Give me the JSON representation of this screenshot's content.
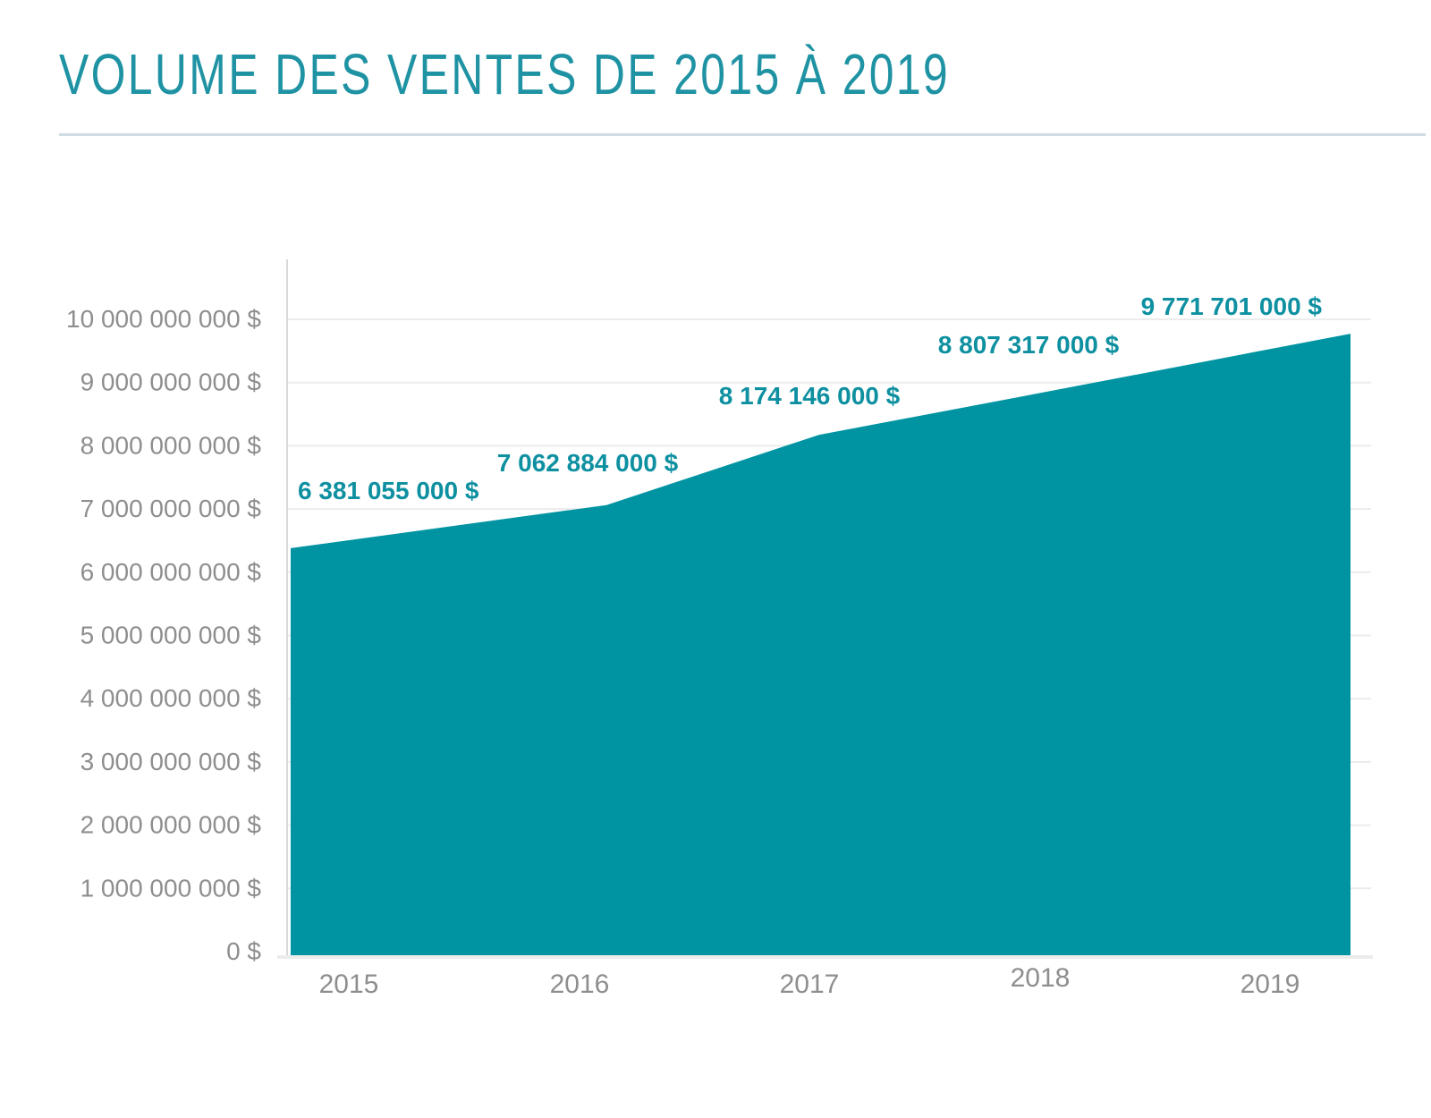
{
  "page": {
    "background": "#ffffff"
  },
  "chart_data": {
    "type": "area",
    "title": "VOLUME DES VENTES DE 2015 À 2019",
    "categories": [
      "2015",
      "2016",
      "2017",
      "2018",
      "2019"
    ],
    "values": [
      6381055000,
      7062884000,
      8174146000,
      8807317000,
      9771701000
    ],
    "value_labels": [
      "6 381 055 000 $",
      "7 062 884 000 $",
      "8 174 146 000 $",
      "8 807 317 000 $",
      "9 771 701 000 $"
    ],
    "xlabel": "",
    "ylabel": "",
    "ylim": [
      0,
      10000000000
    ],
    "y_tick_values": [
      0,
      1000000000,
      2000000000,
      3000000000,
      4000000000,
      5000000000,
      6000000000,
      7000000000,
      8000000000,
      9000000000,
      10000000000
    ],
    "y_tick_labels": [
      "0 $",
      "1 000 000 000 $",
      "2 000 000 000 $",
      "3 000 000 000 $",
      "4 000 000 000 $",
      "5 000 000 000 $",
      "6 000 000 000 $",
      "7 000 000 000 $",
      "8 000 000 000 $",
      "9 000 000 000 $",
      "10 000 000 000 $"
    ],
    "grid": "horizontal",
    "legend": "none",
    "colors": {
      "area": "#0093A1",
      "title": "#1F93A3",
      "value_label": "#0E90A1",
      "axis_label": "#8E8E8E",
      "gridline": "#ECECEC",
      "axis_line": "#D9D9D9",
      "divider": "#CFDCE3"
    }
  }
}
